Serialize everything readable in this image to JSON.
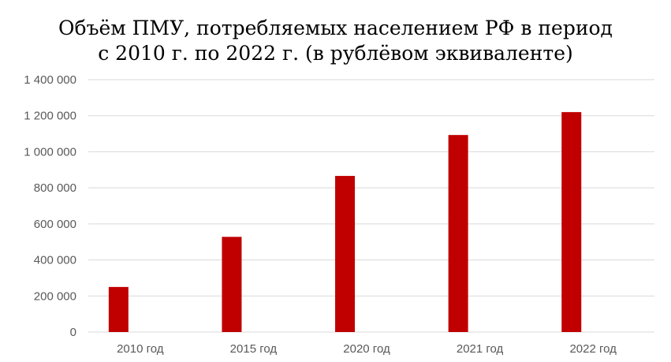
{
  "chart_data": {
    "type": "bar",
    "title_lines": [
      "Объём ПМУ, потребляемых населением РФ в период",
      "с 2010 г. по 2022 г. (в рублёвом эквиваленте)"
    ],
    "categories": [
      "2010 год",
      "2015 год",
      "2020 год",
      "2021 год",
      "2022 год"
    ],
    "series": [
      {
        "values": [
          250000,
          528000,
          866000,
          1093000,
          1220000
        ]
      }
    ],
    "ylim": [
      0,
      1400000
    ],
    "yticks": [
      0,
      200000,
      400000,
      600000,
      800000,
      1000000,
      1200000,
      1400000
    ],
    "ytick_labels": [
      "0",
      "200 000",
      "400 000",
      "600 000",
      "800 000",
      "1 000 000",
      "1 200 000",
      "1 400 000"
    ],
    "grid": true,
    "legend": "none",
    "colors": {
      "bar": "#c00000",
      "grid": "#d9d9d9",
      "tick_text": "#595959"
    }
  }
}
